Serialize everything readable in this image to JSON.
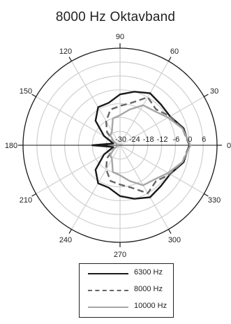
{
  "chart_data": {
    "type": "polar",
    "title": "8000 Hz Oktavband",
    "angle_ticks": [
      0,
      30,
      60,
      90,
      120,
      150,
      180,
      210,
      240,
      270,
      300,
      330
    ],
    "angle_tick_labels": [
      "0",
      "30",
      "60",
      "90",
      "120",
      "150",
      "180",
      "210",
      "240",
      "270",
      "300",
      "330"
    ],
    "radial_ticks": [
      -30,
      -24,
      -18,
      -12,
      -6,
      0,
      6
    ],
    "radial_tick_labels": [
      "-30",
      "-24",
      "-18",
      "-12",
      "-6",
      "0",
      "6"
    ],
    "rlim": [
      -30,
      12
    ],
    "grid": true,
    "legend_position": "bottom",
    "angles": [
      0,
      15,
      30,
      45,
      60,
      75,
      90,
      105,
      120,
      135,
      150,
      165,
      180
    ],
    "series": [
      {
        "name": "6300 Hz",
        "style": "solid",
        "color": "#1a1a1a",
        "values": [
          0,
          -1.5,
          -5,
          -5,
          -4,
          -6,
          -8,
          -11,
          -11,
          -15,
          -22,
          -27,
          -18
        ]
      },
      {
        "name": "8000 Hz",
        "style": "dashed",
        "color": "#666666",
        "values": [
          0,
          -2,
          -5,
          -8,
          -6,
          -11,
          -13,
          -14,
          -18,
          -22,
          -27,
          -29,
          -29
        ]
      },
      {
        "name": "10000 Hz",
        "style": "solid",
        "color": "#a6a6a6",
        "values": [
          0.5,
          -2,
          -6,
          -9,
          -10,
          -14,
          -17,
          -18,
          -23,
          -24,
          -27,
          -29,
          -29
        ]
      }
    ]
  }
}
